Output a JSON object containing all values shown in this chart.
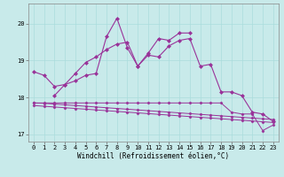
{
  "xlabel": "Windchill (Refroidissement éolien,°C)",
  "bg_color": "#c8eaea",
  "line_color": "#993399",
  "grid_color": "#aadddd",
  "xlim": [
    -0.5,
    23.5
  ],
  "ylim": [
    16.8,
    20.55
  ],
  "yticks": [
    17,
    18,
    19,
    20
  ],
  "xticks": [
    0,
    1,
    2,
    3,
    4,
    5,
    6,
    7,
    8,
    9,
    10,
    11,
    12,
    13,
    14,
    15,
    16,
    17,
    18,
    19,
    20,
    21,
    22,
    23
  ],
  "tick_fontsize": 5.0,
  "xlabel_fontsize": 5.5,
  "series1": [
    18.7,
    18.6,
    18.3,
    18.35,
    18.65,
    18.95,
    19.1,
    19.3,
    19.45,
    19.5,
    18.85,
    19.15,
    19.1,
    19.4,
    19.55,
    19.6,
    18.85,
    18.9,
    18.15,
    18.15,
    18.05,
    17.6,
    17.55,
    17.35
  ],
  "series2": [
    null,
    null,
    18.05,
    18.35,
    18.45,
    18.6,
    18.65,
    19.65,
    20.15,
    19.35,
    18.85,
    19.2,
    19.6,
    19.55,
    19.75,
    19.75,
    null,
    null,
    null,
    null,
    null,
    null,
    null,
    null
  ],
  "series3": [
    17.85,
    17.85,
    17.85,
    17.85,
    17.85,
    17.85,
    17.85,
    17.85,
    17.85,
    17.85,
    17.85,
    17.85,
    17.85,
    17.85,
    17.85,
    17.85,
    17.85,
    17.85,
    17.85,
    17.6,
    17.55,
    17.55,
    17.1,
    17.25
  ],
  "series4": [
    17.85,
    17.84,
    17.82,
    17.8,
    17.78,
    17.76,
    17.74,
    17.72,
    17.7,
    17.68,
    17.66,
    17.64,
    17.62,
    17.6,
    17.58,
    17.56,
    17.54,
    17.52,
    17.5,
    17.48,
    17.46,
    17.44,
    17.42,
    17.4
  ],
  "series5": [
    17.78,
    17.76,
    17.74,
    17.72,
    17.7,
    17.68,
    17.66,
    17.64,
    17.62,
    17.6,
    17.58,
    17.56,
    17.54,
    17.52,
    17.5,
    17.48,
    17.46,
    17.44,
    17.42,
    17.4,
    17.38,
    17.36,
    17.34,
    17.32
  ]
}
